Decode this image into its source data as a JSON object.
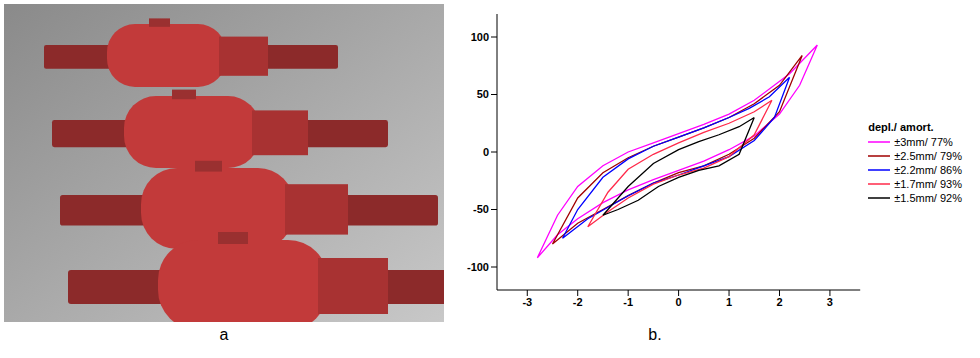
{
  "panel_labels": [
    "a",
    "b."
  ],
  "chart_data": {
    "type": "line",
    "legend_title": "depl./ amort.",
    "legend": "right",
    "grid": false,
    "xlim": [
      -3.6,
      3.6
    ],
    "xticks": [
      -3,
      -2,
      -1,
      0,
      1,
      2,
      3
    ],
    "ylim": [
      -120,
      120
    ],
    "yticks": [
      -100,
      -50,
      0,
      50,
      100
    ],
    "series": [
      {
        "name": "±3mm/ 77%",
        "color": "#ff00ff",
        "x": [
          2.75,
          2.2,
          1.5,
          1,
          0.5,
          0,
          -0.5,
          -1,
          -1.5,
          -2,
          -2.4,
          -2.8,
          -2.4,
          -2,
          -1.5,
          -1,
          -0.5,
          0,
          0.5,
          1,
          1.5,
          2,
          2.4,
          2.75
        ],
        "values": [
          93,
          68,
          45,
          33,
          24,
          16,
          8,
          0,
          -12,
          -30,
          -55,
          -92,
          -72,
          -58,
          -44,
          -33,
          -24,
          -16,
          -8,
          2,
          14,
          33,
          58,
          93
        ]
      },
      {
        "name": "±2.5mm/ 79%",
        "color": "#a00000",
        "x": [
          2.45,
          2,
          1.5,
          1,
          0.5,
          0,
          -0.5,
          -1,
          -1.5,
          -2,
          -2.5,
          -2,
          -1.5,
          -1,
          -0.5,
          0,
          0.5,
          1,
          1.5,
          2,
          2.45
        ],
        "values": [
          84,
          58,
          42,
          30,
          21,
          13,
          5,
          -5,
          -18,
          -40,
          -80,
          -62,
          -50,
          -38,
          -27,
          -18,
          -12,
          -2,
          12,
          35,
          84
        ]
      },
      {
        "name": "±2.2mm/ 86%",
        "color": "#0000ff",
        "x": [
          2.2,
          1.8,
          1.4,
          1,
          0.5,
          0,
          -0.5,
          -1,
          -1.5,
          -2,
          -2.3,
          -1.8,
          -1.4,
          -1,
          -0.5,
          0,
          0.5,
          1,
          1.5,
          1.9,
          2.2
        ],
        "values": [
          65,
          48,
          38,
          30,
          21,
          13,
          5,
          -6,
          -22,
          -50,
          -75,
          -58,
          -48,
          -38,
          -27,
          -20,
          -12,
          -4,
          10,
          30,
          65
        ]
      },
      {
        "name": "±1.7mm/ 93%",
        "color": "#ff2a4a",
        "x": [
          1.85,
          1.5,
          1,
          0.5,
          0,
          -0.5,
          -1,
          -1.4,
          -1.8,
          -1.4,
          -1,
          -0.5,
          0,
          0.5,
          1,
          1.5,
          1.85
        ],
        "values": [
          45,
          35,
          25,
          17,
          8,
          -2,
          -15,
          -35,
          -65,
          -52,
          -40,
          -28,
          -20,
          -14,
          -4,
          15,
          45
        ]
      },
      {
        "name": "±1.5mm/ 92%",
        "color": "#000000",
        "x": [
          1.5,
          1.2,
          0.8,
          0.4,
          0,
          -0.5,
          -1,
          -1.5,
          -1.2,
          -0.8,
          -0.4,
          0,
          0.4,
          0.8,
          1.2,
          1.5
        ],
        "values": [
          30,
          22,
          15,
          9,
          2,
          -10,
          -30,
          -55,
          -50,
          -42,
          -30,
          -22,
          -16,
          -12,
          -2,
          30
        ]
      }
    ]
  }
}
